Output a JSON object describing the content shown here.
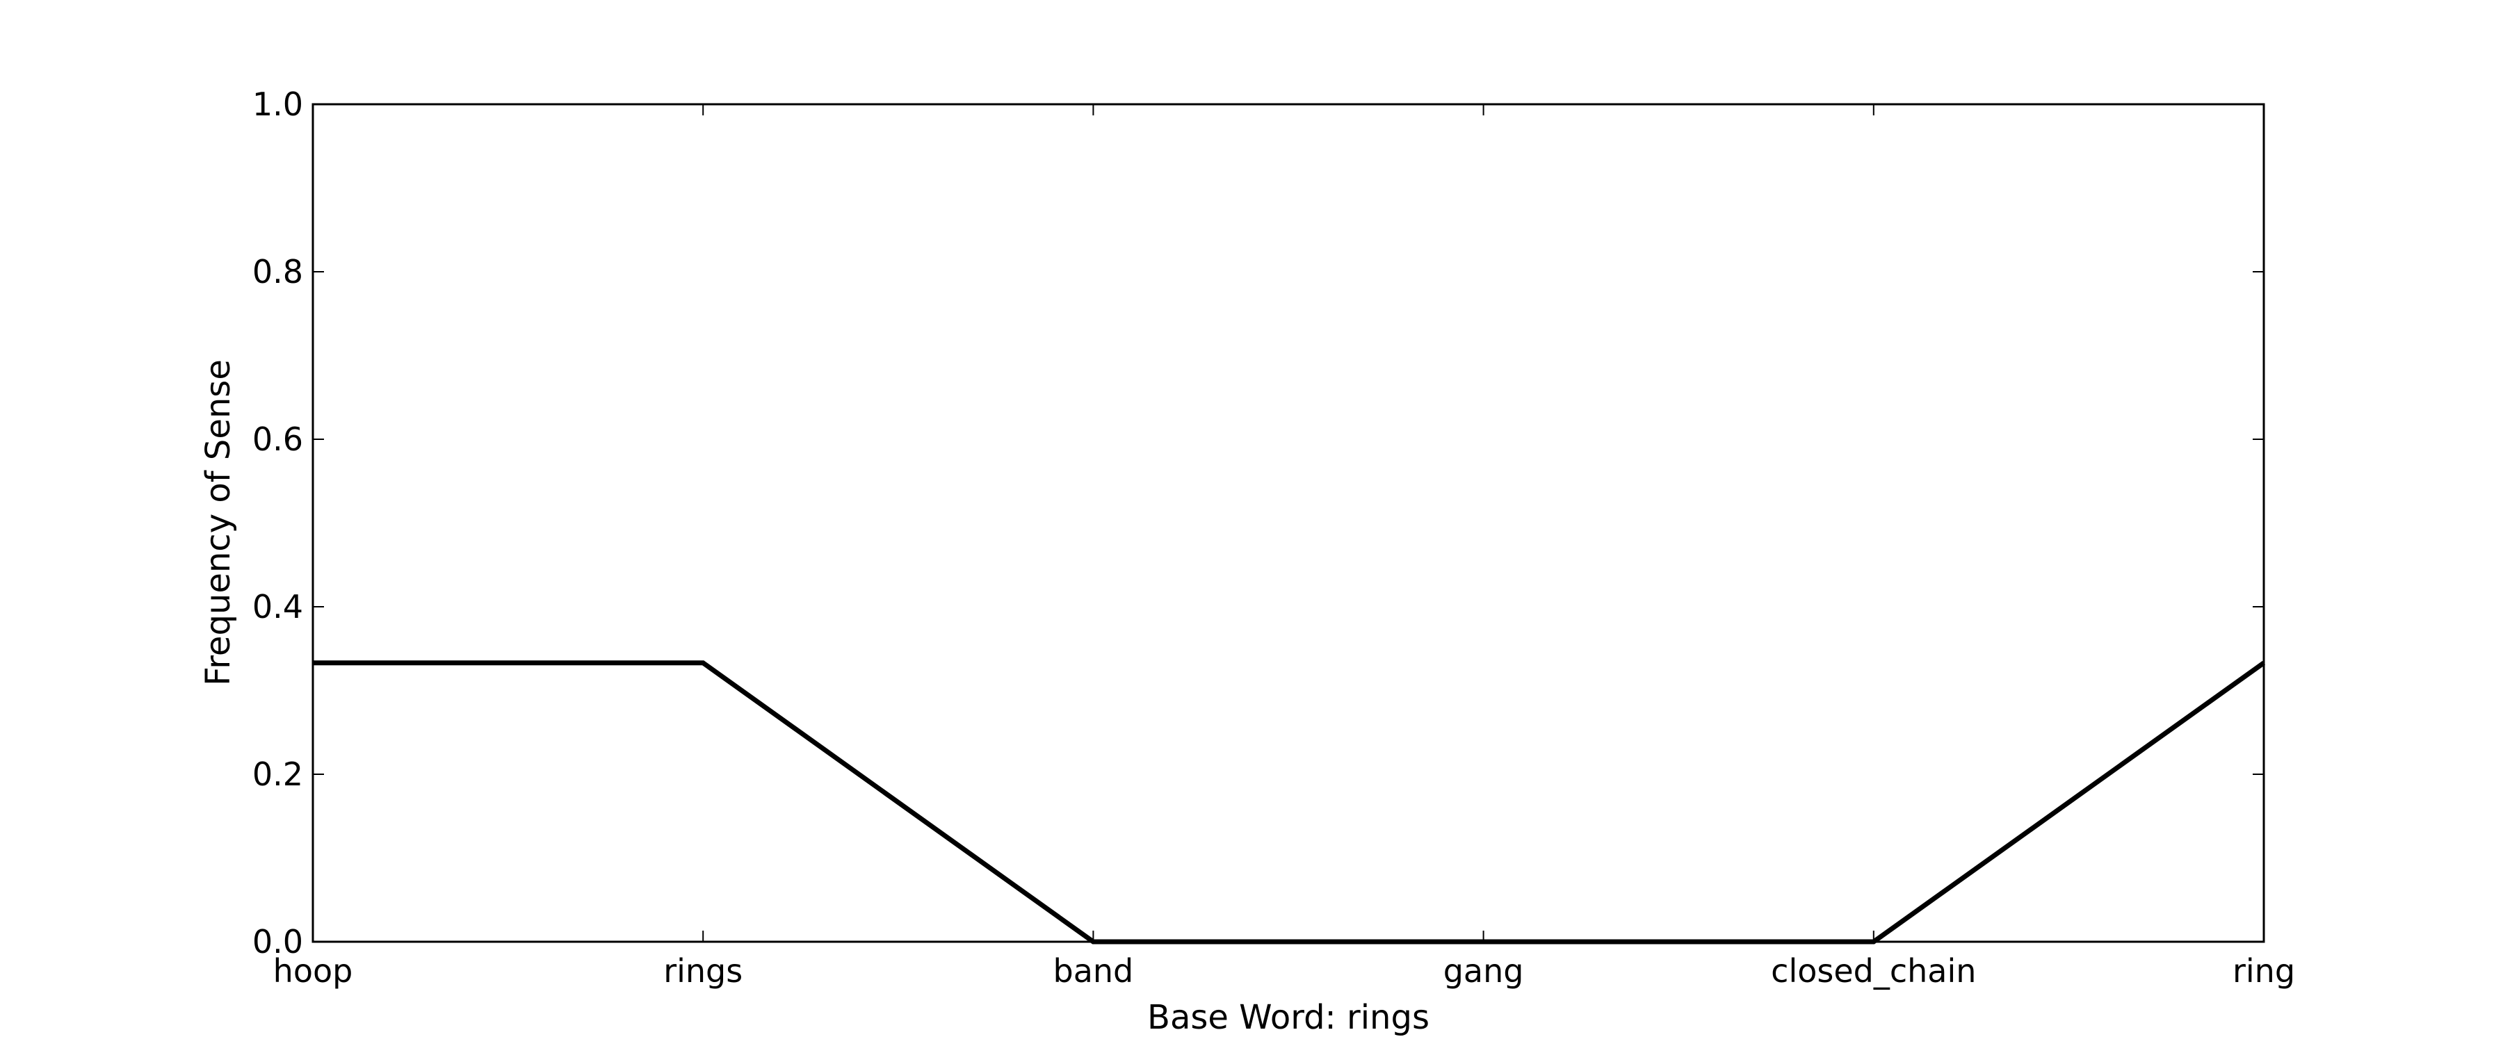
{
  "chart_data": {
    "type": "line",
    "categories": [
      "hoop",
      "rings",
      "band",
      "gang",
      "closed_chain",
      "ring"
    ],
    "series": [
      {
        "values": [
          0.333,
          0.333,
          0.0,
          0.0,
          0.0,
          0.333
        ],
        "color": "#000000"
      }
    ],
    "xlabel": "Base Word: rings",
    "ylabel": "Frequency of Sense",
    "ylim": [
      0.0,
      1.0
    ],
    "yticks": [
      "0.0",
      "0.2",
      "0.4",
      "0.6",
      "0.8",
      "1.0"
    ],
    "grid": false,
    "legend": "none"
  }
}
